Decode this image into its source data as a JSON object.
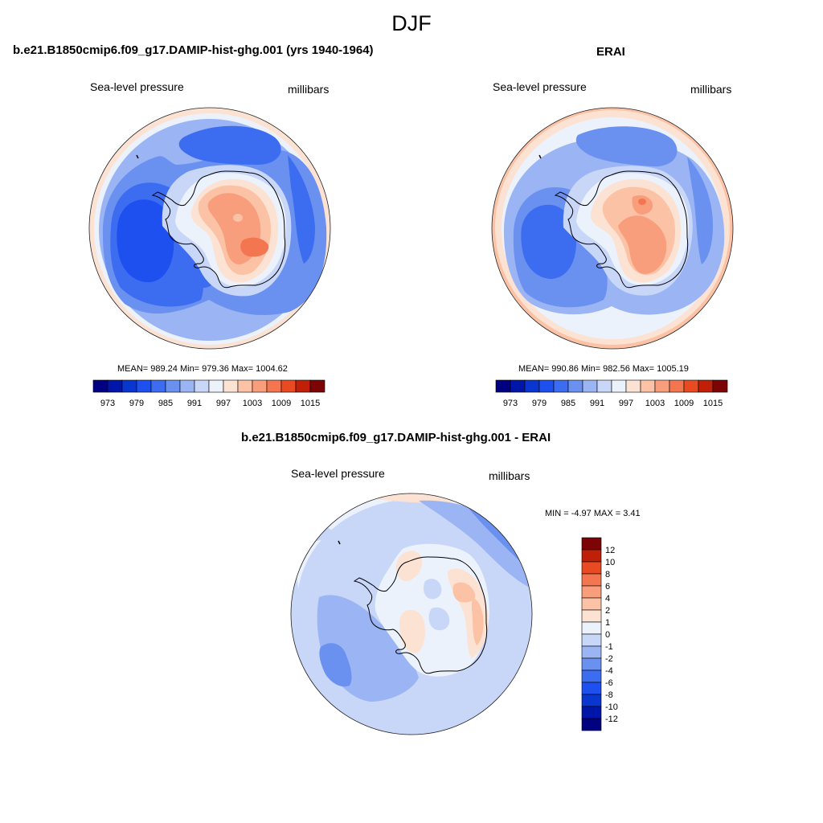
{
  "figure_title": "DJF",
  "chart_data": [
    {
      "type": "heatmap",
      "projection": "south-polar-stereographic",
      "title": "b.e21.B1850cmip6.f09_g17.DAMIP-hist-ghg.001 (yrs 1940-1964)",
      "variable": "Sea-level pressure",
      "units": "millibars",
      "stats_text": "MEAN= 989.24  Min= 979.36  Max= 1004.62",
      "mean": 989.24,
      "min": 979.36,
      "max": 1004.62,
      "colorbar": {
        "orientation": "horizontal",
        "levels": [
          973,
          976,
          979,
          982,
          985,
          988,
          991,
          994,
          997,
          1000,
          1003,
          1006,
          1009,
          1012,
          1015
        ],
        "tick_labels": [
          "973",
          "979",
          "985",
          "991",
          "997",
          "1003",
          "1009",
          "1015"
        ],
        "colors": [
          "#000080",
          "#0016a8",
          "#0a36d0",
          "#1e50f0",
          "#3c6cf0",
          "#6a90f0",
          "#9ab4f4",
          "#c8d6f8",
          "#ecf2fc",
          "#fce2d2",
          "#fcc2a6",
          "#f89e7c",
          "#f47650",
          "#e84a22",
          "#c02008",
          "#7c0404"
        ]
      }
    },
    {
      "type": "heatmap",
      "projection": "south-polar-stereographic",
      "title": "ERAI",
      "variable": "Sea-level pressure",
      "units": "millibars",
      "stats_text": "MEAN= 990.86  Min= 982.56  Max= 1005.19",
      "mean": 990.86,
      "min": 982.56,
      "max": 1005.19,
      "colorbar": {
        "orientation": "horizontal",
        "levels": [
          973,
          976,
          979,
          982,
          985,
          988,
          991,
          994,
          997,
          1000,
          1003,
          1006,
          1009,
          1012,
          1015
        ],
        "tick_labels": [
          "973",
          "979",
          "985",
          "991",
          "997",
          "1003",
          "1009",
          "1015"
        ],
        "colors": [
          "#000080",
          "#0016a8",
          "#0a36d0",
          "#1e50f0",
          "#3c6cf0",
          "#6a90f0",
          "#9ab4f4",
          "#c8d6f8",
          "#ecf2fc",
          "#fce2d2",
          "#fcc2a6",
          "#f89e7c",
          "#f47650",
          "#e84a22",
          "#c02008",
          "#7c0404"
        ]
      }
    },
    {
      "type": "heatmap",
      "projection": "south-polar-stereographic",
      "title": "b.e21.B1850cmip6.f09_g17.DAMIP-hist-ghg.001 - ERAI",
      "variable": "Sea-level pressure",
      "units": "millibars",
      "stats_text": "MIN =  -4.97 MAX =   3.41",
      "min": -4.97,
      "max": 3.41,
      "colorbar": {
        "orientation": "vertical",
        "levels": [
          -12,
          -10,
          -8,
          -6,
          -4,
          -2,
          -1,
          0,
          1,
          2,
          4,
          6,
          8,
          10,
          12
        ],
        "tick_labels": [
          "12",
          "10",
          "8",
          "6",
          "4",
          "2",
          "1",
          "0",
          "-1",
          "-2",
          "-4",
          "-6",
          "-8",
          "-10",
          "-12"
        ],
        "colors": [
          "#000080",
          "#0016a8",
          "#0a36d0",
          "#1e50f0",
          "#3c6cf0",
          "#6a90f0",
          "#9ab4f4",
          "#c8d6f8",
          "#ecf2fc",
          "#fce2d2",
          "#fcc2a6",
          "#f89e7c",
          "#f47650",
          "#e84a22",
          "#c02008",
          "#7c0404"
        ]
      }
    }
  ]
}
